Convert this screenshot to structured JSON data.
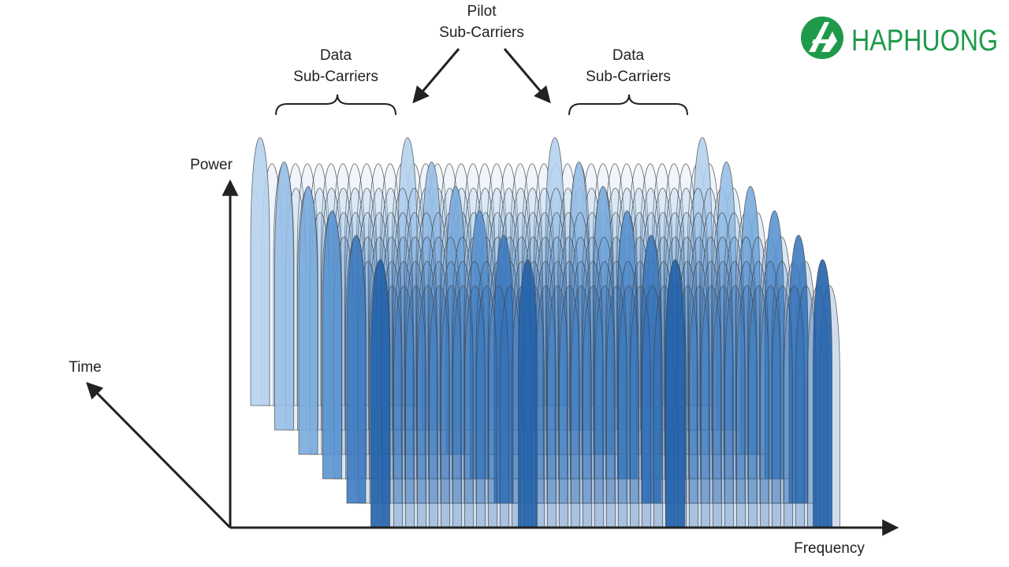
{
  "labels": {
    "pilot": [
      "Pilot",
      "Sub-Carriers"
    ],
    "data_left": [
      "Data",
      "Sub-Carriers"
    ],
    "data_right": [
      "Data",
      "Sub-Carriers"
    ]
  },
  "axes": {
    "power": "Power",
    "time": "Time",
    "frequency": "Frequency"
  },
  "logo": {
    "text": "HAPHUONG"
  }
}
